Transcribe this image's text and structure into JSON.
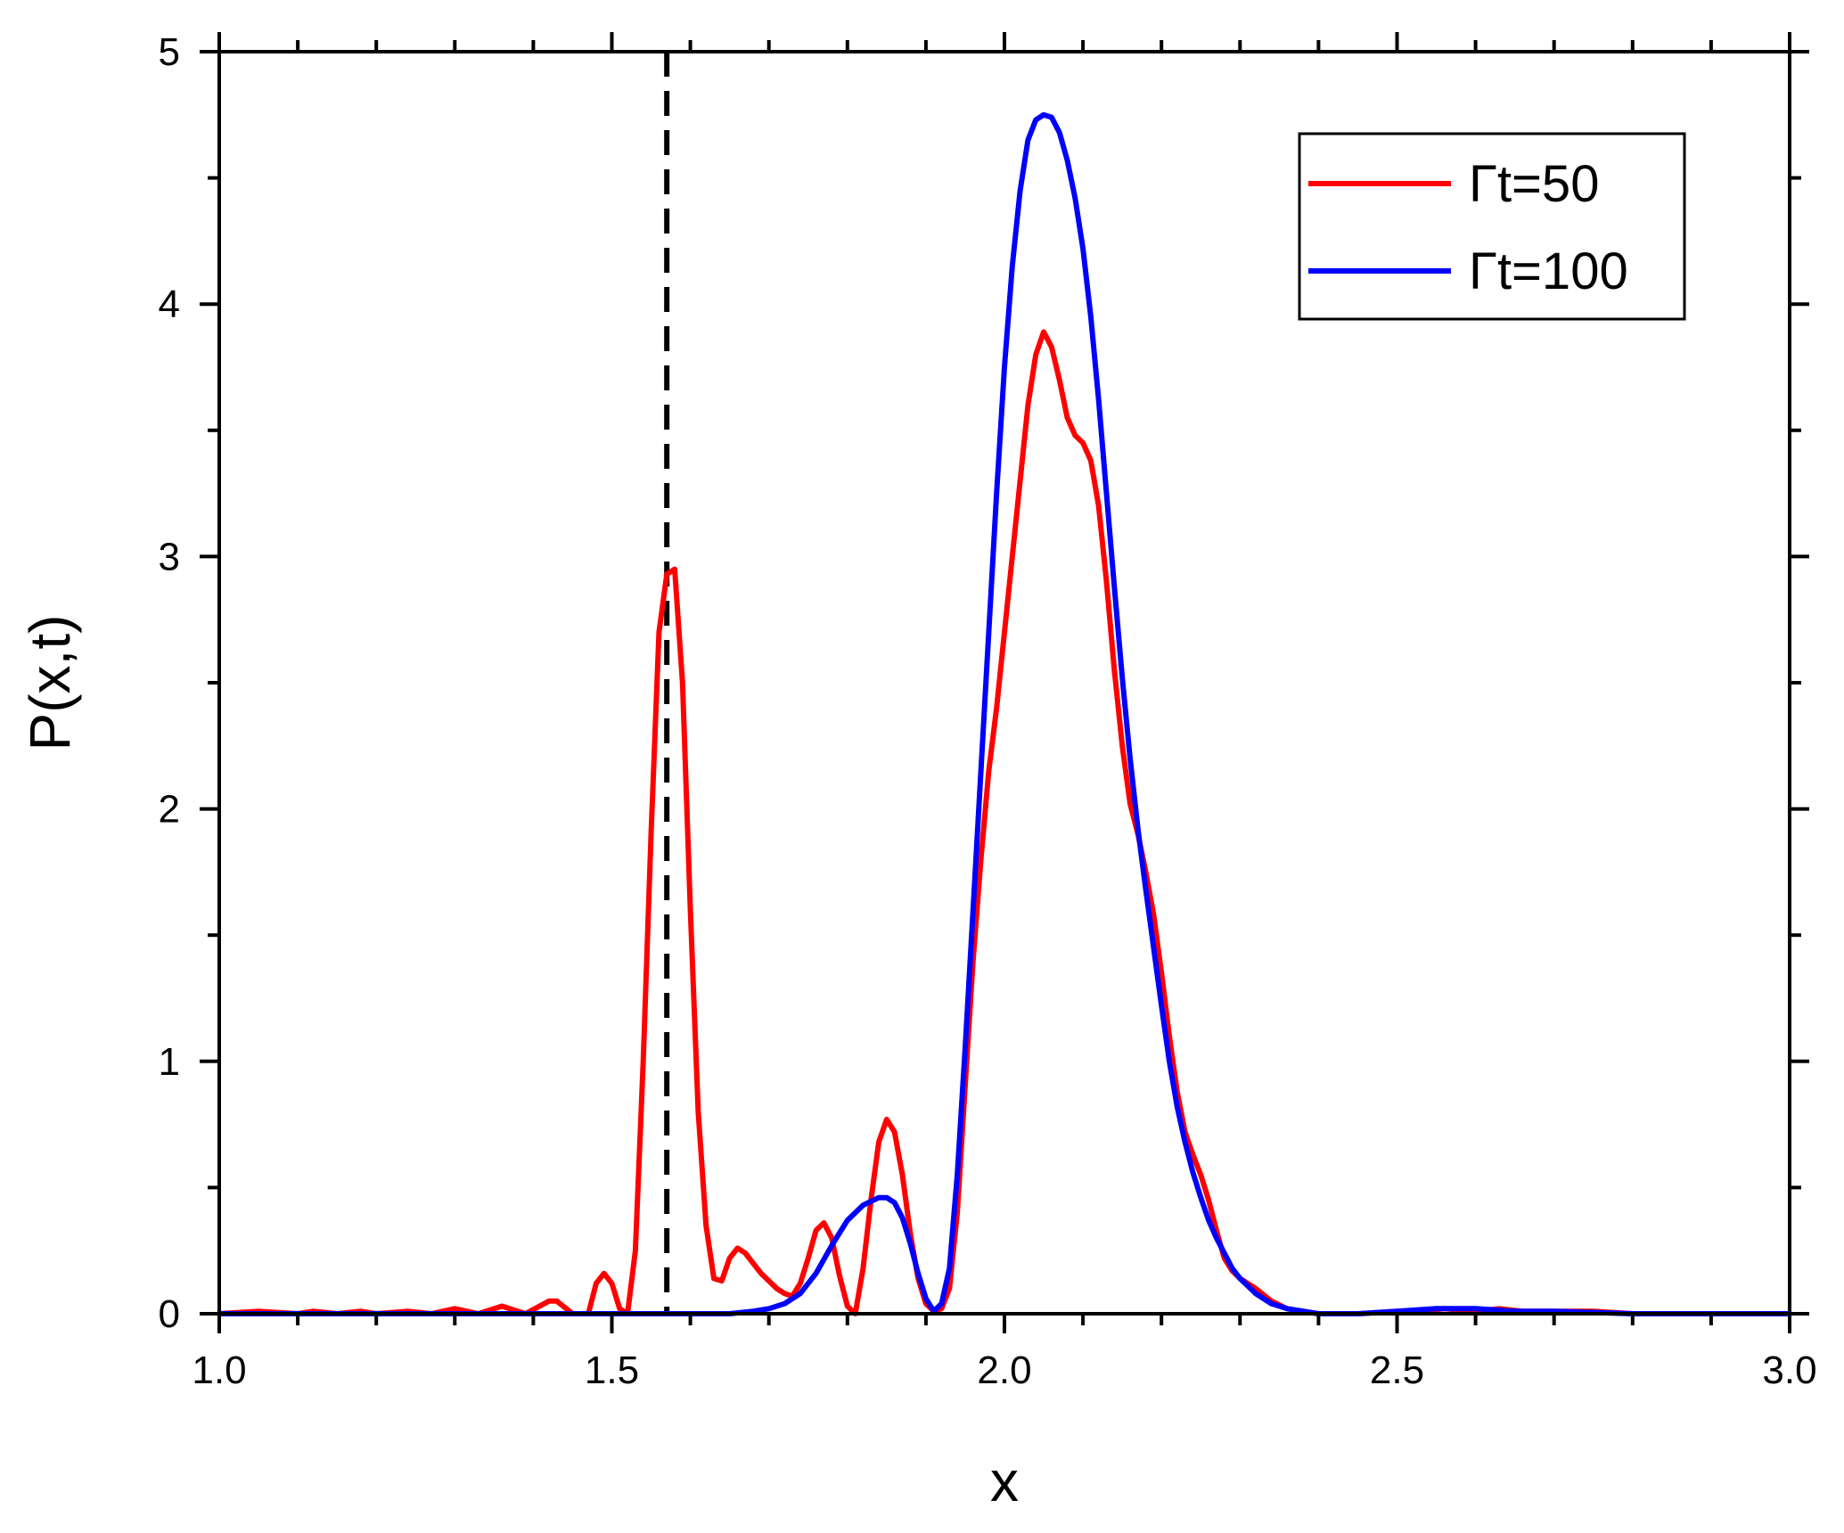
{
  "chart_data": {
    "type": "line",
    "title": "",
    "xlabel": "x",
    "ylabel": "P(x,t)",
    "xlim": [
      1.0,
      3.0
    ],
    "ylim": [
      0,
      5
    ],
    "x_ticks": [
      "1.0",
      "1.5",
      "2.0",
      "2.5",
      "3.0"
    ],
    "x_tick_values": [
      1.0,
      1.5,
      2.0,
      2.5,
      3.0
    ],
    "y_ticks": [
      "0",
      "1",
      "2",
      "3",
      "4",
      "5"
    ],
    "y_tick_values": [
      0,
      1,
      2,
      3,
      4,
      5
    ],
    "grid": false,
    "legend_position": "top-right",
    "reference_line": {
      "orientation": "vertical",
      "x": 1.57,
      "style": "dashed",
      "color": "#000000"
    },
    "series": [
      {
        "name": "Γt=50",
        "color": "#ff0000",
        "points": [
          [
            1.0,
            0.0
          ],
          [
            1.05,
            0.01
          ],
          [
            1.1,
            0.0
          ],
          [
            1.12,
            0.01
          ],
          [
            1.15,
            0.0
          ],
          [
            1.18,
            0.01
          ],
          [
            1.2,
            0.0
          ],
          [
            1.24,
            0.01
          ],
          [
            1.27,
            0.0
          ],
          [
            1.3,
            0.02
          ],
          [
            1.33,
            0.0
          ],
          [
            1.36,
            0.03
          ],
          [
            1.39,
            0.0
          ],
          [
            1.42,
            0.05
          ],
          [
            1.43,
            0.05
          ],
          [
            1.45,
            0.0
          ],
          [
            1.47,
            0.0
          ],
          [
            1.48,
            0.12
          ],
          [
            1.49,
            0.16
          ],
          [
            1.5,
            0.12
          ],
          [
            1.51,
            0.02
          ],
          [
            1.52,
            0.0
          ],
          [
            1.53,
            0.25
          ],
          [
            1.54,
            1.0
          ],
          [
            1.55,
            1.9
          ],
          [
            1.56,
            2.7
          ],
          [
            1.57,
            2.93
          ],
          [
            1.58,
            2.95
          ],
          [
            1.59,
            2.5
          ],
          [
            1.6,
            1.6
          ],
          [
            1.61,
            0.8
          ],
          [
            1.62,
            0.35
          ],
          [
            1.63,
            0.14
          ],
          [
            1.64,
            0.13
          ],
          [
            1.65,
            0.22
          ],
          [
            1.66,
            0.26
          ],
          [
            1.67,
            0.24
          ],
          [
            1.68,
            0.2
          ],
          [
            1.69,
            0.16
          ],
          [
            1.7,
            0.13
          ],
          [
            1.71,
            0.1
          ],
          [
            1.72,
            0.08
          ],
          [
            1.73,
            0.07
          ],
          [
            1.74,
            0.12
          ],
          [
            1.75,
            0.22
          ],
          [
            1.76,
            0.33
          ],
          [
            1.77,
            0.36
          ],
          [
            1.78,
            0.3
          ],
          [
            1.79,
            0.15
          ],
          [
            1.8,
            0.03
          ],
          [
            1.81,
            0.0
          ],
          [
            1.82,
            0.18
          ],
          [
            1.83,
            0.45
          ],
          [
            1.84,
            0.68
          ],
          [
            1.85,
            0.77
          ],
          [
            1.86,
            0.72
          ],
          [
            1.87,
            0.55
          ],
          [
            1.88,
            0.32
          ],
          [
            1.89,
            0.14
          ],
          [
            1.9,
            0.04
          ],
          [
            1.91,
            0.01
          ],
          [
            1.92,
            0.02
          ],
          [
            1.93,
            0.1
          ],
          [
            1.94,
            0.4
          ],
          [
            1.95,
            0.9
          ],
          [
            1.96,
            1.4
          ],
          [
            1.97,
            1.8
          ],
          [
            1.98,
            2.15
          ],
          [
            1.99,
            2.4
          ],
          [
            2.0,
            2.7
          ],
          [
            2.01,
            3.0
          ],
          [
            2.02,
            3.3
          ],
          [
            2.03,
            3.6
          ],
          [
            2.04,
            3.8
          ],
          [
            2.05,
            3.89
          ],
          [
            2.06,
            3.83
          ],
          [
            2.07,
            3.7
          ],
          [
            2.08,
            3.55
          ],
          [
            2.09,
            3.48
          ],
          [
            2.1,
            3.45
          ],
          [
            2.11,
            3.38
          ],
          [
            2.12,
            3.2
          ],
          [
            2.13,
            2.9
          ],
          [
            2.14,
            2.55
          ],
          [
            2.15,
            2.25
          ],
          [
            2.16,
            2.02
          ],
          [
            2.17,
            1.9
          ],
          [
            2.18,
            1.75
          ],
          [
            2.19,
            1.58
          ],
          [
            2.2,
            1.35
          ],
          [
            2.21,
            1.1
          ],
          [
            2.22,
            0.88
          ],
          [
            2.23,
            0.72
          ],
          [
            2.24,
            0.63
          ],
          [
            2.25,
            0.55
          ],
          [
            2.26,
            0.45
          ],
          [
            2.27,
            0.33
          ],
          [
            2.28,
            0.22
          ],
          [
            2.29,
            0.17
          ],
          [
            2.3,
            0.14
          ],
          [
            2.32,
            0.1
          ],
          [
            2.34,
            0.05
          ],
          [
            2.36,
            0.02
          ],
          [
            2.38,
            0.01
          ],
          [
            2.4,
            0.0
          ],
          [
            2.45,
            0.0
          ],
          [
            2.5,
            0.01
          ],
          [
            2.53,
            0.01
          ],
          [
            2.56,
            0.02
          ],
          [
            2.6,
            0.01
          ],
          [
            2.63,
            0.02
          ],
          [
            2.66,
            0.01
          ],
          [
            2.7,
            0.01
          ],
          [
            2.75,
            0.01
          ],
          [
            2.8,
            0.0
          ],
          [
            2.9,
            0.0
          ],
          [
            3.0,
            0.0
          ]
        ]
      },
      {
        "name": "Γt=100",
        "color": "#0000ff",
        "points": [
          [
            1.0,
            0.0
          ],
          [
            1.6,
            0.0
          ],
          [
            1.65,
            0.0
          ],
          [
            1.68,
            0.01
          ],
          [
            1.7,
            0.02
          ],
          [
            1.72,
            0.04
          ],
          [
            1.74,
            0.08
          ],
          [
            1.76,
            0.16
          ],
          [
            1.78,
            0.27
          ],
          [
            1.8,
            0.37
          ],
          [
            1.82,
            0.43
          ],
          [
            1.84,
            0.46
          ],
          [
            1.85,
            0.46
          ],
          [
            1.86,
            0.44
          ],
          [
            1.87,
            0.38
          ],
          [
            1.88,
            0.28
          ],
          [
            1.89,
            0.16
          ],
          [
            1.9,
            0.06
          ],
          [
            1.91,
            0.01
          ],
          [
            1.92,
            0.04
          ],
          [
            1.93,
            0.18
          ],
          [
            1.94,
            0.55
          ],
          [
            1.95,
            1.05
          ],
          [
            1.96,
            1.6
          ],
          [
            1.97,
            2.15
          ],
          [
            1.98,
            2.7
          ],
          [
            1.99,
            3.25
          ],
          [
            2.0,
            3.75
          ],
          [
            2.01,
            4.15
          ],
          [
            2.02,
            4.45
          ],
          [
            2.03,
            4.65
          ],
          [
            2.04,
            4.73
          ],
          [
            2.05,
            4.75
          ],
          [
            2.06,
            4.74
          ],
          [
            2.07,
            4.68
          ],
          [
            2.08,
            4.57
          ],
          [
            2.09,
            4.42
          ],
          [
            2.1,
            4.22
          ],
          [
            2.11,
            3.95
          ],
          [
            2.12,
            3.62
          ],
          [
            2.13,
            3.25
          ],
          [
            2.14,
            2.88
          ],
          [
            2.15,
            2.52
          ],
          [
            2.16,
            2.2
          ],
          [
            2.17,
            1.92
          ],
          [
            2.18,
            1.68
          ],
          [
            2.19,
            1.45
          ],
          [
            2.2,
            1.22
          ],
          [
            2.21,
            1.0
          ],
          [
            2.22,
            0.82
          ],
          [
            2.23,
            0.68
          ],
          [
            2.24,
            0.56
          ],
          [
            2.25,
            0.46
          ],
          [
            2.26,
            0.37
          ],
          [
            2.27,
            0.3
          ],
          [
            2.28,
            0.24
          ],
          [
            2.29,
            0.18
          ],
          [
            2.3,
            0.14
          ],
          [
            2.32,
            0.08
          ],
          [
            2.34,
            0.04
          ],
          [
            2.36,
            0.02
          ],
          [
            2.4,
            0.0
          ],
          [
            2.45,
            0.0
          ],
          [
            2.5,
            0.01
          ],
          [
            2.55,
            0.02
          ],
          [
            2.6,
            0.02
          ],
          [
            2.65,
            0.01
          ],
          [
            2.7,
            0.01
          ],
          [
            2.8,
            0.0
          ],
          [
            3.0,
            0.0
          ]
        ]
      }
    ]
  }
}
